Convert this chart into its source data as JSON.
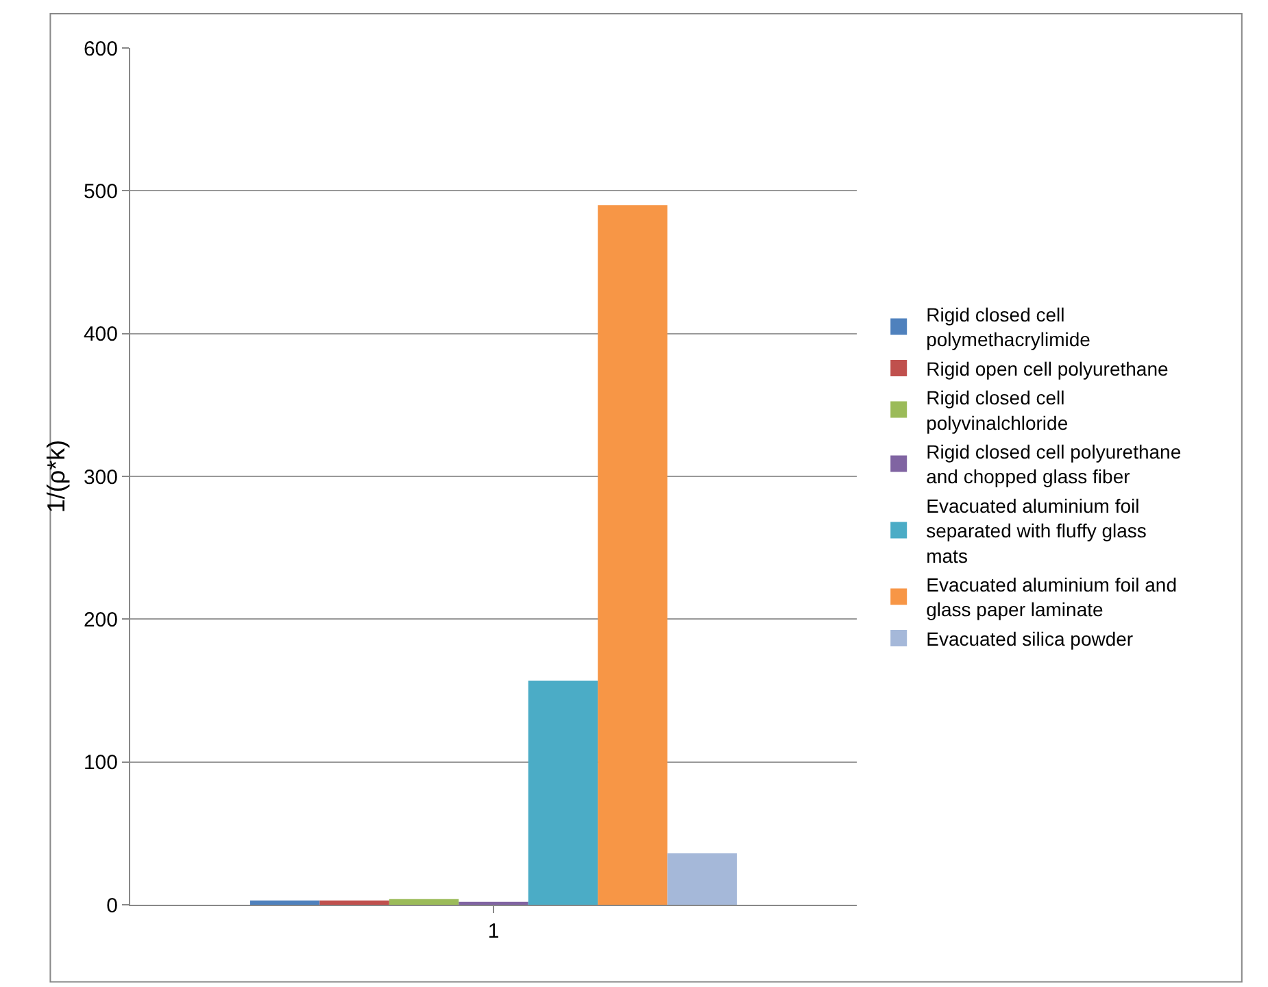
{
  "chart_data": {
    "type": "bar",
    "ylabel": "1/(ρ*k)",
    "categories": [
      "1"
    ],
    "series": [
      {
        "name": "Rigid closed cell polymethacrylimide",
        "color": "#4f81bd",
        "values": [
          3
        ]
      },
      {
        "name": "Rigid open cell polyurethane",
        "color": "#c0504d",
        "values": [
          3
        ]
      },
      {
        "name": "Rigid closed cell polyvinalchloride",
        "color": "#9bbb59",
        "values": [
          4
        ]
      },
      {
        "name": "Rigid closed cell polyurethane and chopped glass fiber",
        "color": "#8064a2",
        "values": [
          2
        ]
      },
      {
        "name": "Evacuated aluminium foil separated with fluffy glass mats",
        "color": "#4bacc6",
        "values": [
          157
        ]
      },
      {
        "name": "Evacuated aluminium foil and glass paper laminate",
        "color": "#f79646",
        "values": [
          490
        ]
      },
      {
        "name": "Evacuated silica powder",
        "color": "#a5b8d9",
        "values": [
          36
        ]
      }
    ],
    "ylim": [
      0,
      600
    ],
    "yticks": [
      0,
      100,
      200,
      300,
      400,
      500,
      600
    ],
    "grid": "y",
    "legend": "right"
  }
}
